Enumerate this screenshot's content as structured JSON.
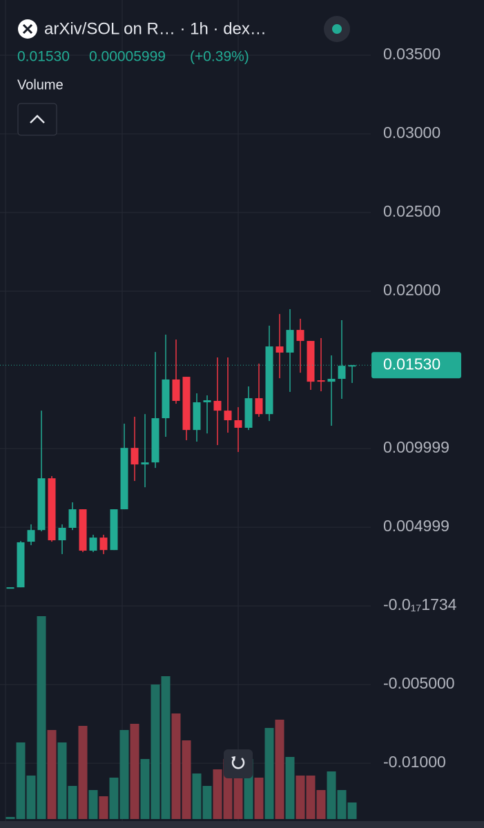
{
  "chart_data": {
    "type": "candlestick",
    "title": "arXiv/SOL on R… · 1h · dex…",
    "legend": {
      "price": "0.01530",
      "change": "0.00005999",
      "change_pct": "(+0.39%)"
    },
    "volume_label": "Volume",
    "categories": [
      null,
      null,
      null,
      null,
      null,
      null,
      null,
      null,
      null,
      null,
      null,
      null,
      null,
      null,
      null,
      null,
      null,
      null,
      null,
      null,
      null,
      null,
      null,
      null,
      null,
      null,
      null,
      null,
      null,
      null,
      null,
      null,
      null,
      null
    ],
    "open": [
      0.00118,
      0.00118,
      0.00408,
      0.00482,
      0.00811,
      0.00417,
      0.00496,
      0.00614,
      0.00351,
      0.00434,
      0.00355,
      0.00614,
      0.01004,
      0.00899,
      0.00912,
      0.01193,
      0.01439,
      0.01456,
      0.01118,
      0.01294,
      0.01303,
      0.01241,
      0.0118,
      0.01132,
      0.0132,
      0.01219,
      0.01649,
      0.0161,
      0.01754,
      0.01684,
      0.01434,
      0.01425,
      0.01443,
      0.0153
    ],
    "high": [
      0.00118,
      0.00412,
      0.00518,
      0.01241,
      0.00825,
      0.00518,
      0.00658,
      0.00614,
      0.00452,
      0.00452,
      0.00614,
      0.01158,
      0.01202,
      0.01219,
      0.01614,
      0.01724,
      0.01693,
      0.01456,
      0.01351,
      0.01338,
      0.01579,
      0.01579,
      0.01263,
      0.01395,
      0.0154,
      0.01781,
      0.01855,
      0.01886,
      0.01825,
      0.01684,
      0.01702,
      0.01592,
      0.01816,
      0.0153
    ],
    "low": [
      0.00118,
      0.00118,
      0.00386,
      0.00474,
      0.00408,
      0.00329,
      0.00482,
      0.00342,
      0.00342,
      0.00329,
      0.00355,
      0.00614,
      0.00794,
      0.00754,
      0.00877,
      0.01075,
      0.01285,
      0.01053,
      0.01044,
      0.01096,
      0.01022,
      0.01101,
      0.00978,
      0.01118,
      0.01202,
      0.01175,
      0.01447,
      0.0136,
      0.01482,
      0.01373,
      0.01364,
      0.01145,
      0.01316,
      0.01417
    ],
    "close": [
      0.00118,
      0.00404,
      0.00482,
      0.00811,
      0.00417,
      0.00496,
      0.00614,
      0.00351,
      0.00434,
      0.00355,
      0.00614,
      0.01004,
      0.00899,
      0.00912,
      0.01193,
      0.01439,
      0.01303,
      0.01118,
      0.01294,
      0.01307,
      0.01241,
      0.0118,
      0.01132,
      0.0132,
      0.01219,
      0.01649,
      0.0161,
      0.01754,
      0.01684,
      0.01425,
      0.01425,
      0.01443,
      0.01526,
      0.0153
    ],
    "volume": [
      1,
      37,
      21,
      98,
      43,
      37,
      16,
      45,
      14,
      11,
      20,
      43,
      46,
      29,
      65,
      69,
      51,
      38,
      22,
      16,
      24,
      29,
      22,
      29,
      20,
      44,
      48,
      30,
      21,
      21,
      14,
      23,
      14,
      8
    ],
    "up_color": "#22ab94",
    "down_color": "#f23645",
    "volume_up_color": "#1f6f62",
    "volume_down_color": "#8a3640",
    "last_price": {
      "value": 0.0153,
      "label": "0.01530"
    },
    "ylim": [
      -0.01368,
      0.03851
    ],
    "yticks": [
      {
        "value": 0.035,
        "label": "0.03500"
      },
      {
        "value": 0.03,
        "label": "0.03000"
      },
      {
        "value": 0.025,
        "label": "0.02500"
      },
      {
        "value": 0.02,
        "label": "0.02000"
      },
      {
        "value": 0.009999,
        "label": "0.009999"
      },
      {
        "value": 0.004999,
        "label": "0.004999"
      },
      {
        "value": -1.734e-18,
        "label": "-0.0₁₇1734"
      },
      {
        "value": -0.005,
        "label": "-0.005000"
      },
      {
        "value": -0.01,
        "label": "-0.01000"
      }
    ],
    "grid": true
  }
}
